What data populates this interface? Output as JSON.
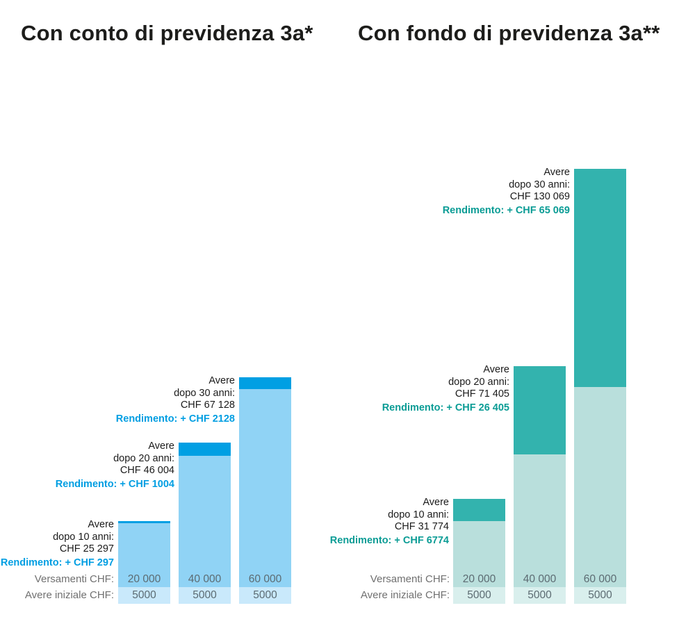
{
  "chart_data": [
    {
      "type": "stacked-bar",
      "id": "conto",
      "title": "Con conto di previdenza 3a*",
      "unit": "CHF",
      "legend_position": "none",
      "grid": false,
      "colors": {
        "cap": "#009fe3",
        "body": "#90d3f5",
        "base": "#c9e9fb",
        "accent": "#009ee2"
      },
      "row_labels": {
        "versamenti": "Versamenti CHF:",
        "iniziale": "Avere iniziale CHF:"
      },
      "bars": [
        {
          "years": 10,
          "avere": 25297,
          "rendimento": 297,
          "versamenti": 20000,
          "iniziale": 5000,
          "labels": {
            "avere_1": "Avere",
            "avere_2": "dopo 10 anni:",
            "avere_3": "CHF 25 297",
            "rendimento": "Rendimento: + CHF 297",
            "versamenti": "20 000",
            "iniziale": "5000"
          },
          "px": {
            "total": 119,
            "cap": 3
          }
        },
        {
          "years": 20,
          "avere": 46004,
          "rendimento": 1004,
          "versamenti": 40000,
          "iniziale": 5000,
          "labels": {
            "avere_1": "Avere",
            "avere_2": "dopo 20 anni:",
            "avere_3": "CHF 46 004",
            "rendimento": "Rendimento: + CHF 1004",
            "versamenti": "40 000",
            "iniziale": "5000"
          },
          "px": {
            "total": 232,
            "cap": 19
          }
        },
        {
          "years": 30,
          "avere": 67128,
          "rendimento": 2128,
          "versamenti": 60000,
          "iniziale": 5000,
          "labels": {
            "avere_1": "Avere",
            "avere_2": "dopo 30 anni:",
            "avere_3": "CHF 67 128",
            "rendimento": "Rendimento: + CHF 2128",
            "versamenti": "60 000",
            "iniziale": "5000"
          },
          "px": {
            "total": 326,
            "cap": 17
          }
        }
      ]
    },
    {
      "type": "stacked-bar",
      "id": "fondo",
      "title": "Con fondo di previdenza 3a**",
      "unit": "CHF",
      "legend_position": "none",
      "grid": false,
      "colors": {
        "cap": "#33b3ae",
        "body": "#b9dfdc",
        "base": "#d9efed",
        "accent": "#0a9c95"
      },
      "row_labels": {
        "versamenti": "Versamenti CHF:",
        "iniziale": "Avere iniziale CHF:"
      },
      "bars": [
        {
          "years": 10,
          "avere": 31774,
          "rendimento": 6774,
          "versamenti": 20000,
          "iniziale": 5000,
          "labels": {
            "avere_1": "Avere",
            "avere_2": "dopo 10 anni:",
            "avere_3": "CHF 31 774",
            "rendimento": "Rendimento: + CHF 6774",
            "versamenti": "20 000",
            "iniziale": "5000"
          },
          "px": {
            "total": 151,
            "cap": 32
          }
        },
        {
          "years": 20,
          "avere": 71405,
          "rendimento": 26405,
          "versamenti": 40000,
          "iniziale": 5000,
          "labels": {
            "avere_1": "Avere",
            "avere_2": "dopo 20 anni:",
            "avere_3": "CHF 71 405",
            "rendimento": "Rendimento: + CHF 26 405",
            "versamenti": "40 000",
            "iniziale": "5000"
          },
          "px": {
            "total": 342,
            "cap": 127
          }
        },
        {
          "years": 30,
          "avere": 130069,
          "rendimento": 65069,
          "versamenti": 60000,
          "iniziale": 5000,
          "labels": {
            "avere_1": "Avere",
            "avere_2": "dopo 30 anni:",
            "avere_3": "CHF 130 069",
            "rendimento": "Rendimento: + CHF 65 069",
            "versamenti": "60 000",
            "iniziale": "5000"
          },
          "px": {
            "total": 626,
            "cap": 314
          }
        }
      ]
    }
  ]
}
